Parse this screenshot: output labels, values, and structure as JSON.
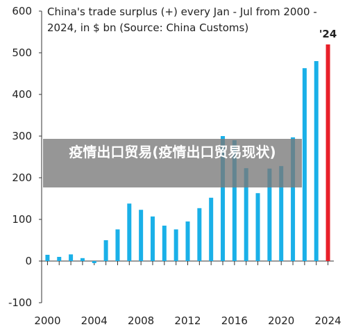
{
  "chart_data": {
    "type": "bar",
    "title_lines": [
      "China's trade surplus (+) every Jan - Jul from 2000 -",
      "2024, in $ bn (Source: China Customs)"
    ],
    "x": [
      2000,
      2001,
      2002,
      2003,
      2004,
      2005,
      2006,
      2007,
      2008,
      2009,
      2010,
      2011,
      2012,
      2013,
      2014,
      2015,
      2016,
      2017,
      2018,
      2019,
      2020,
      2021,
      2022,
      2023,
      2024
    ],
    "values": [
      15,
      10,
      16,
      7,
      -5,
      50,
      76,
      138,
      123,
      107,
      85,
      76,
      95,
      127,
      152,
      300,
      290,
      223,
      163,
      222,
      228,
      297,
      463,
      480,
      520
    ],
    "color": "#1ab0e8",
    "annotation": {
      "text": "'24",
      "x": 2024,
      "color": "#e8202a"
    },
    "xlim": [
      1999.5,
      2024.5
    ],
    "xticks": [
      2000,
      2004,
      2008,
      2012,
      2016,
      2020,
      2024
    ],
    "ylim": [
      -100,
      600
    ],
    "yticks": [
      -100,
      0,
      100,
      200,
      300,
      400,
      500,
      600
    ],
    "banner": "疫情出口贸易(疫情出口贸易现状)"
  }
}
